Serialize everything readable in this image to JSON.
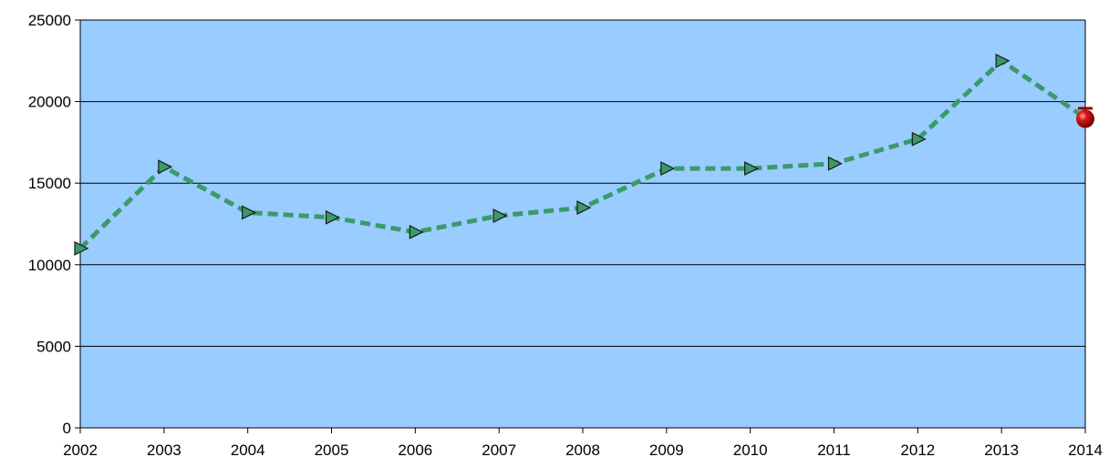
{
  "chart_data": {
    "type": "line",
    "title": "",
    "xlabel": "",
    "ylabel": "",
    "x": [
      "2002",
      "2003",
      "2004",
      "2005",
      "2006",
      "2007",
      "2008",
      "2009",
      "2010",
      "2011",
      "2012",
      "2013",
      "2014"
    ],
    "ylim": [
      0,
      25000
    ],
    "yticks": [
      0,
      5000,
      10000,
      15000,
      20000,
      25000
    ],
    "grid": true,
    "legend": "none",
    "colors": {
      "plot_background": "#99ccff",
      "line": "#3a9a6a",
      "marker_fill": "#3a9a6a",
      "last_marker": "#cc0000"
    },
    "series": [
      {
        "values": [
          11000,
          16000,
          13200,
          12900,
          12000,
          13000,
          13500,
          15900,
          15900,
          16200,
          17700,
          22500,
          19000
        ],
        "marker": "triangle-right",
        "last_marker": "red-sphere"
      }
    ]
  }
}
